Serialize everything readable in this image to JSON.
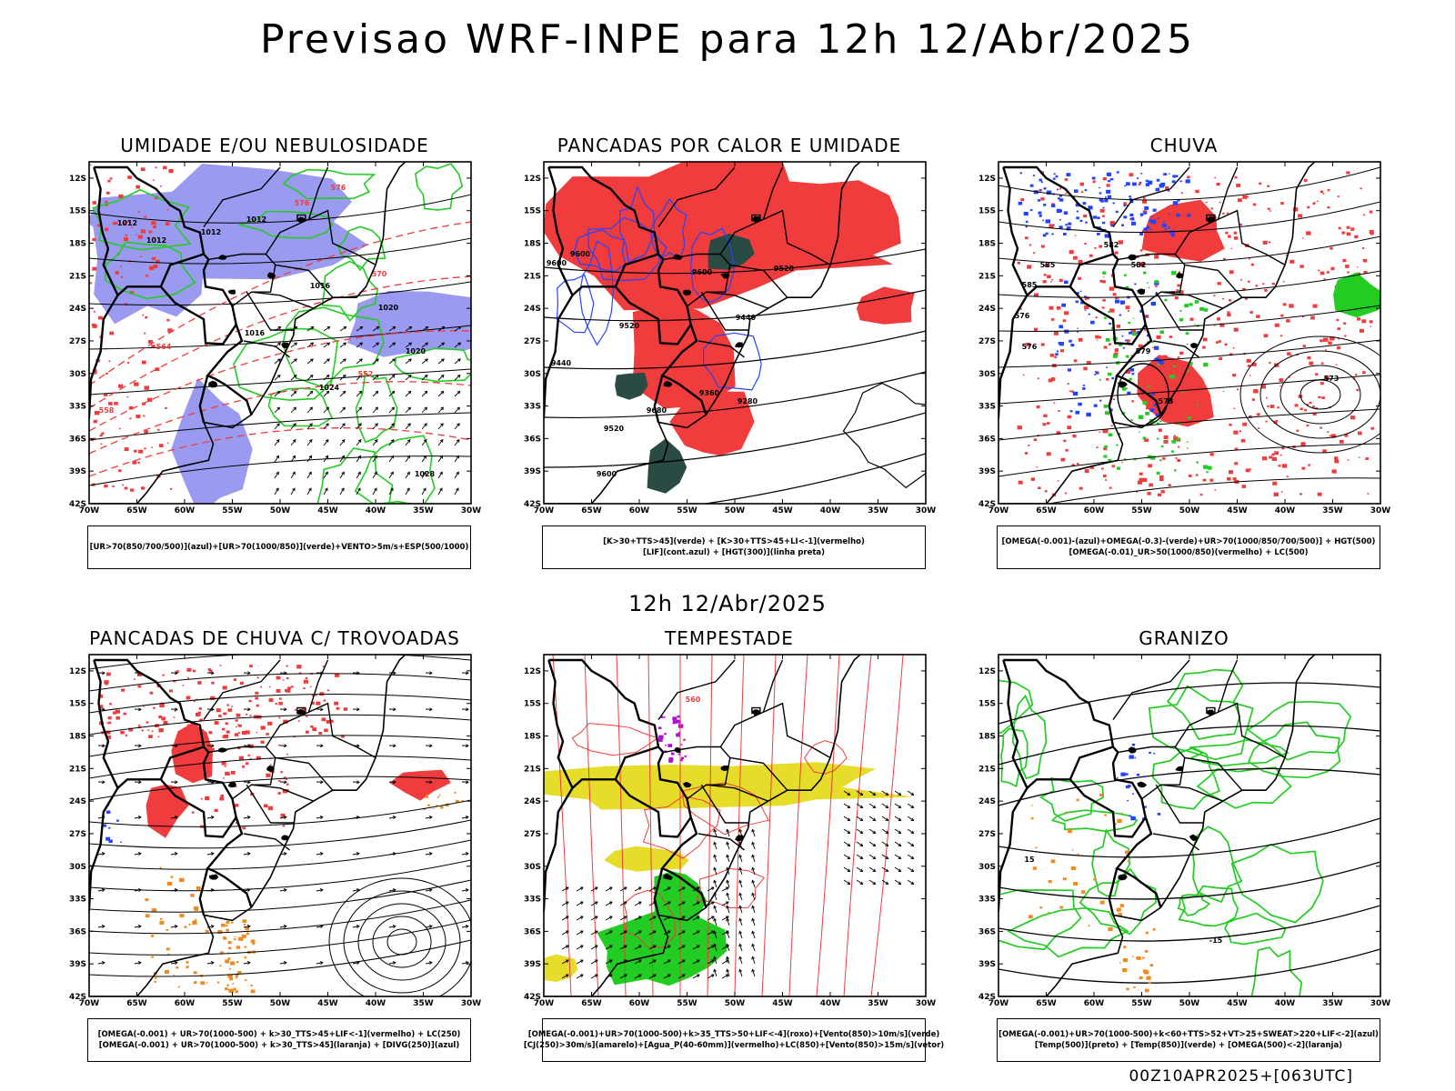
{
  "header": {
    "title": "Previsao WRF-INPE  para 12h 12/Abr/2025",
    "subtitle": "12h 12/Abr/2025",
    "footer": "00Z10APR2025+[063UTC]"
  },
  "axes": {
    "lat_labels": [
      "12S",
      "15S",
      "18S",
      "21S",
      "24S",
      "27S",
      "30S",
      "33S",
      "36S",
      "39S",
      "42S"
    ],
    "lon_labels": [
      "70W",
      "65W",
      "60W",
      "55W",
      "50W",
      "45W",
      "40W",
      "35W",
      "30W"
    ]
  },
  "colors": {
    "red": "#f03c3c",
    "green": "#22cc22",
    "blue": "#2244ff",
    "lavender": "#9a9af0",
    "darkgreen": "#2a4a44",
    "yellow": "#e6dc2a",
    "orange": "#f08a1e",
    "purple": "#b010d0",
    "black": "#000000"
  },
  "panels": [
    {
      "id": "umidade",
      "title": "UMIDADE E/OU NEBULOSIDADE",
      "legend": [
        "[UR>70(850/700/500)](azul)+[UR>70(1000/850)](verde)+VENTO>5m/s+ESP(500/1000)"
      ],
      "labels": [
        "1012",
        "1012",
        "1012",
        "1012",
        "1016",
        "1016",
        "1020",
        "1020",
        "1024",
        "1028",
        "576",
        "576",
        "570",
        "564",
        "558",
        "552"
      ]
    },
    {
      "id": "pancadas-calor",
      "title": "PANCADAS POR CALOR E UMIDADE",
      "legend": [
        "[K>30+TTS>45](verde) + [K>30+TTS>45+LI<-1](vermelho)",
        "[LIF](cont.azul) + [HGT(300)](linha preta)"
      ],
      "labels": [
        "9600",
        "9600",
        "9600",
        "9520",
        "9520",
        "9440",
        "9440",
        "9360",
        "9280",
        "9520",
        "9600",
        "9680"
      ]
    },
    {
      "id": "chuva",
      "title": "CHUVA",
      "legend": [
        "[OMEGA(-0.001)-(azul)+OMEGA(-0.3)-(verde)+UR>70(1000/850/700/500)] + HGT(500)",
        "[OMEGA(-0.01)_UR>50(1000/850)(vermelho) + LC(500)"
      ],
      "labels": [
        "585",
        "582",
        "585",
        "582",
        "576",
        "579",
        "573",
        "576",
        "573"
      ]
    },
    {
      "id": "pancadas-trovoadas",
      "title": "PANCADAS DE CHUVA C/ TROVOADAS",
      "legend": [
        "[OMEGA(-0.001) + UR>70(1000-500) + k>30_TTS>45+LIF<-1](vermelho) + LC(250)",
        "[OMEGA(-0.001) + UR>70(1000-500) + k>30_TTS>45](laranja) + [DIVG(250)](azul)"
      ],
      "labels": []
    },
    {
      "id": "tempestade",
      "title": "TEMPESTADE",
      "legend": [
        "[OMEGA(-0.001)+UR>70(1000-500)+k>35_TTS>50+LIF<-4](roxo)+[Vento(850)>10m/s](verde)",
        "[CJ(250)>30m/s](amarelo)+[Agua_P(40-60mm)](vermelho)+LC(850)+[Vento(850)>15m/s](vetor)"
      ],
      "labels": [
        "560"
      ]
    },
    {
      "id": "granizo",
      "title": "GRANIZO",
      "legend": [
        "[OMEGA(-0.001)+UR>70(1000-500)+k<60+TTS>52+VT>25+SWEAT>220+LIF<-2](azul)",
        "[Temp(500)](preto) + [Temp(850)](verde) + [OMEGA(500)<-2](laranja)"
      ],
      "labels": [
        "-15",
        "15"
      ]
    }
  ]
}
